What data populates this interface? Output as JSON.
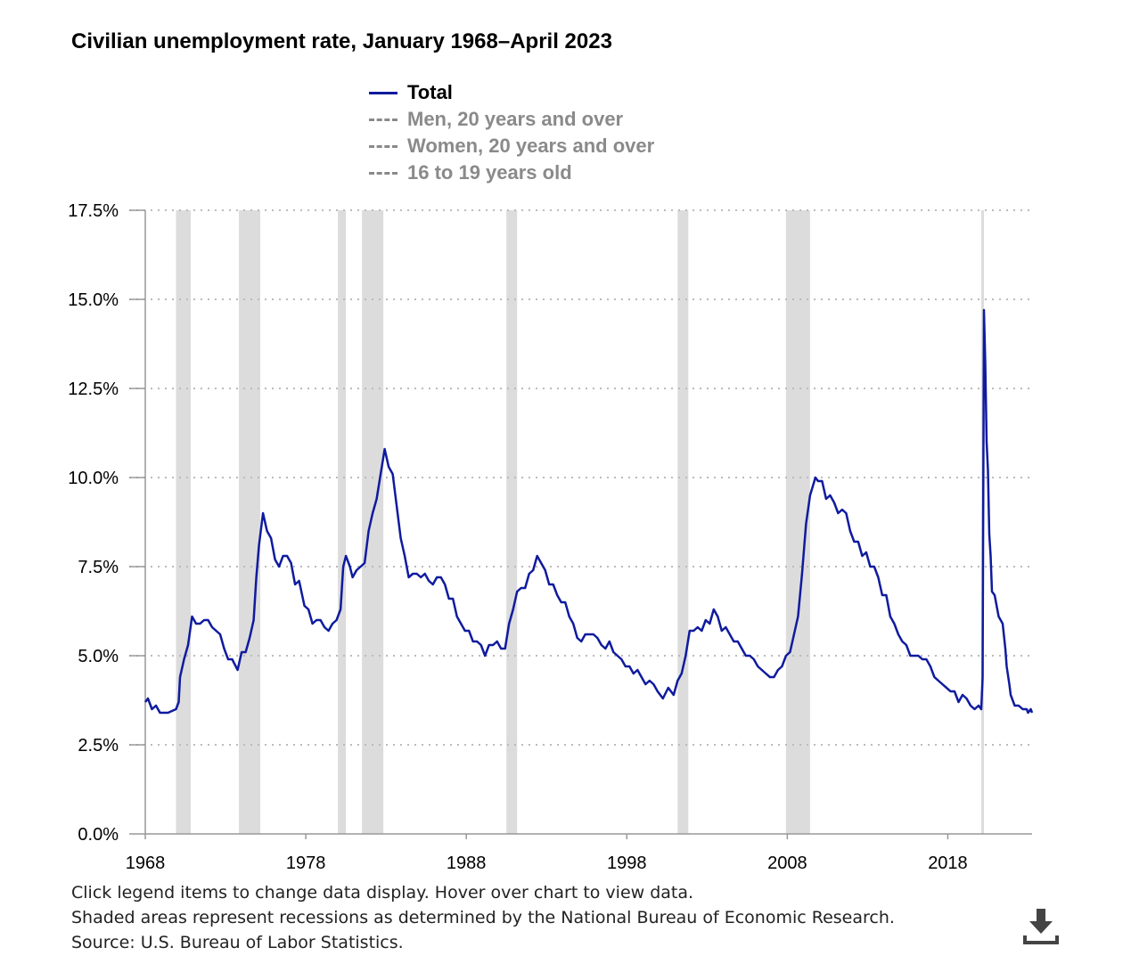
{
  "chart_data": {
    "type": "line",
    "title": "Civilian unemployment rate, January 1968–April 2023",
    "xlabel": "",
    "ylabel": "",
    "ylim": [
      0,
      17.5
    ],
    "xlim": [
      "1968-01",
      "2023-04"
    ],
    "y_ticks": [
      "0.0%",
      "2.5%",
      "5.0%",
      "7.5%",
      "10.0%",
      "12.5%",
      "15.0%",
      "17.5%"
    ],
    "y_tick_values": [
      0,
      2.5,
      5,
      7.5,
      10,
      12.5,
      15,
      17.5
    ],
    "x_ticks": [
      "1968",
      "1978",
      "1988",
      "1998",
      "2008",
      "2018"
    ],
    "grid": "horizontal dotted",
    "legend_placement": "top",
    "legend": [
      {
        "label": "Total",
        "active": true
      },
      {
        "label": "Men, 20 years and over",
        "active": false
      },
      {
        "label": "Women, 20 years and over",
        "active": false
      },
      {
        "label": "16 to 19 years old",
        "active": false
      }
    ],
    "colors": {
      "total": "#0f1b9e",
      "inactive": "#8a8a8a",
      "recession": "#dcdcdc",
      "grid": "#bbbbbb"
    },
    "recessions": [
      [
        "1969-12",
        "1970-11"
      ],
      [
        "1973-11",
        "1975-03"
      ],
      [
        "1980-01",
        "1980-07"
      ],
      [
        "1981-07",
        "1982-11"
      ],
      [
        "1990-07",
        "1991-03"
      ],
      [
        "2001-03",
        "2001-11"
      ],
      [
        "2007-12",
        "2009-06"
      ],
      [
        "2020-02",
        "2020-04"
      ]
    ],
    "series": [
      {
        "name": "Total",
        "points": [
          [
            "1968-01",
            3.7
          ],
          [
            "1968-03",
            3.8
          ],
          [
            "1968-06",
            3.5
          ],
          [
            "1968-09",
            3.6
          ],
          [
            "1968-12",
            3.4
          ],
          [
            "1969-06",
            3.4
          ],
          [
            "1969-12",
            3.5
          ],
          [
            "1970-02",
            3.7
          ],
          [
            "1970-03",
            4.4
          ],
          [
            "1970-06",
            4.9
          ],
          [
            "1970-09",
            5.3
          ],
          [
            "1970-12",
            6.1
          ],
          [
            "1971-03",
            5.9
          ],
          [
            "1971-06",
            5.9
          ],
          [
            "1971-09",
            6.0
          ],
          [
            "1971-12",
            6.0
          ],
          [
            "1972-03",
            5.8
          ],
          [
            "1972-06",
            5.7
          ],
          [
            "1972-09",
            5.6
          ],
          [
            "1972-12",
            5.2
          ],
          [
            "1973-03",
            4.9
          ],
          [
            "1973-06",
            4.9
          ],
          [
            "1973-10",
            4.6
          ],
          [
            "1974-01",
            5.1
          ],
          [
            "1974-04",
            5.1
          ],
          [
            "1974-07",
            5.5
          ],
          [
            "1974-10",
            6.0
          ],
          [
            "1974-12",
            7.2
          ],
          [
            "1975-02",
            8.1
          ],
          [
            "1975-05",
            9.0
          ],
          [
            "1975-08",
            8.5
          ],
          [
            "1975-11",
            8.3
          ],
          [
            "1976-02",
            7.7
          ],
          [
            "1976-05",
            7.5
          ],
          [
            "1976-08",
            7.8
          ],
          [
            "1976-11",
            7.8
          ],
          [
            "1977-02",
            7.6
          ],
          [
            "1977-05",
            7.0
          ],
          [
            "1977-08",
            7.1
          ],
          [
            "1977-12",
            6.4
          ],
          [
            "1978-03",
            6.3
          ],
          [
            "1978-06",
            5.9
          ],
          [
            "1978-09",
            6.0
          ],
          [
            "1978-12",
            6.0
          ],
          [
            "1979-03",
            5.8
          ],
          [
            "1979-06",
            5.7
          ],
          [
            "1979-09",
            5.9
          ],
          [
            "1979-12",
            6.0
          ],
          [
            "1980-03",
            6.3
          ],
          [
            "1980-05",
            7.5
          ],
          [
            "1980-07",
            7.8
          ],
          [
            "1980-10",
            7.5
          ],
          [
            "1980-12",
            7.2
          ],
          [
            "1981-03",
            7.4
          ],
          [
            "1981-06",
            7.5
          ],
          [
            "1981-09",
            7.6
          ],
          [
            "1981-12",
            8.5
          ],
          [
            "1982-03",
            9.0
          ],
          [
            "1982-06",
            9.4
          ],
          [
            "1982-09",
            10.1
          ],
          [
            "1982-12",
            10.8
          ],
          [
            "1983-03",
            10.3
          ],
          [
            "1983-06",
            10.1
          ],
          [
            "1983-09",
            9.2
          ],
          [
            "1983-12",
            8.3
          ],
          [
            "1984-03",
            7.8
          ],
          [
            "1984-06",
            7.2
          ],
          [
            "1984-09",
            7.3
          ],
          [
            "1984-12",
            7.3
          ],
          [
            "1985-03",
            7.2
          ],
          [
            "1985-06",
            7.3
          ],
          [
            "1985-09",
            7.1
          ],
          [
            "1985-12",
            7.0
          ],
          [
            "1986-03",
            7.2
          ],
          [
            "1986-06",
            7.2
          ],
          [
            "1986-09",
            7.0
          ],
          [
            "1986-12",
            6.6
          ],
          [
            "1987-03",
            6.6
          ],
          [
            "1987-06",
            6.1
          ],
          [
            "1987-09",
            5.9
          ],
          [
            "1987-12",
            5.7
          ],
          [
            "1988-03",
            5.7
          ],
          [
            "1988-06",
            5.4
          ],
          [
            "1988-09",
            5.4
          ],
          [
            "1988-12",
            5.3
          ],
          [
            "1989-03",
            5.0
          ],
          [
            "1989-06",
            5.3
          ],
          [
            "1989-09",
            5.3
          ],
          [
            "1989-12",
            5.4
          ],
          [
            "1990-03",
            5.2
          ],
          [
            "1990-06",
            5.2
          ],
          [
            "1990-09",
            5.9
          ],
          [
            "1990-12",
            6.3
          ],
          [
            "1991-03",
            6.8
          ],
          [
            "1991-06",
            6.9
          ],
          [
            "1991-09",
            6.9
          ],
          [
            "1991-12",
            7.3
          ],
          [
            "1992-03",
            7.4
          ],
          [
            "1992-06",
            7.8
          ],
          [
            "1992-09",
            7.6
          ],
          [
            "1992-12",
            7.4
          ],
          [
            "1993-03",
            7.0
          ],
          [
            "1993-06",
            7.0
          ],
          [
            "1993-09",
            6.7
          ],
          [
            "1993-12",
            6.5
          ],
          [
            "1994-03",
            6.5
          ],
          [
            "1994-06",
            6.1
          ],
          [
            "1994-09",
            5.9
          ],
          [
            "1994-12",
            5.5
          ],
          [
            "1995-03",
            5.4
          ],
          [
            "1995-06",
            5.6
          ],
          [
            "1995-09",
            5.6
          ],
          [
            "1995-12",
            5.6
          ],
          [
            "1996-03",
            5.5
          ],
          [
            "1996-06",
            5.3
          ],
          [
            "1996-09",
            5.2
          ],
          [
            "1996-12",
            5.4
          ],
          [
            "1997-03",
            5.1
          ],
          [
            "1997-06",
            5.0
          ],
          [
            "1997-09",
            4.9
          ],
          [
            "1997-12",
            4.7
          ],
          [
            "1998-03",
            4.7
          ],
          [
            "1998-06",
            4.5
          ],
          [
            "1998-09",
            4.6
          ],
          [
            "1998-12",
            4.4
          ],
          [
            "1999-03",
            4.2
          ],
          [
            "1999-06",
            4.3
          ],
          [
            "1999-09",
            4.2
          ],
          [
            "1999-12",
            4.0
          ],
          [
            "2000-04",
            3.8
          ],
          [
            "2000-08",
            4.1
          ],
          [
            "2000-12",
            3.9
          ],
          [
            "2001-03",
            4.3
          ],
          [
            "2001-06",
            4.5
          ],
          [
            "2001-09",
            5.0
          ],
          [
            "2001-12",
            5.7
          ],
          [
            "2002-03",
            5.7
          ],
          [
            "2002-06",
            5.8
          ],
          [
            "2002-09",
            5.7
          ],
          [
            "2002-12",
            6.0
          ],
          [
            "2003-03",
            5.9
          ],
          [
            "2003-06",
            6.3
          ],
          [
            "2003-09",
            6.1
          ],
          [
            "2003-12",
            5.7
          ],
          [
            "2004-03",
            5.8
          ],
          [
            "2004-06",
            5.6
          ],
          [
            "2004-09",
            5.4
          ],
          [
            "2004-12",
            5.4
          ],
          [
            "2005-03",
            5.2
          ],
          [
            "2005-06",
            5.0
          ],
          [
            "2005-09",
            5.0
          ],
          [
            "2005-12",
            4.9
          ],
          [
            "2006-03",
            4.7
          ],
          [
            "2006-06",
            4.6
          ],
          [
            "2006-09",
            4.5
          ],
          [
            "2006-12",
            4.4
          ],
          [
            "2007-03",
            4.4
          ],
          [
            "2007-06",
            4.6
          ],
          [
            "2007-09",
            4.7
          ],
          [
            "2007-12",
            5.0
          ],
          [
            "2008-03",
            5.1
          ],
          [
            "2008-06",
            5.6
          ],
          [
            "2008-09",
            6.1
          ],
          [
            "2008-12",
            7.3
          ],
          [
            "2009-03",
            8.7
          ],
          [
            "2009-06",
            9.5
          ],
          [
            "2009-10",
            10.0
          ],
          [
            "2009-12",
            9.9
          ],
          [
            "2010-03",
            9.9
          ],
          [
            "2010-06",
            9.4
          ],
          [
            "2010-09",
            9.5
          ],
          [
            "2010-12",
            9.3
          ],
          [
            "2011-03",
            9.0
          ],
          [
            "2011-06",
            9.1
          ],
          [
            "2011-09",
            9.0
          ],
          [
            "2011-12",
            8.5
          ],
          [
            "2012-03",
            8.2
          ],
          [
            "2012-06",
            8.2
          ],
          [
            "2012-09",
            7.8
          ],
          [
            "2012-12",
            7.9
          ],
          [
            "2013-03",
            7.5
          ],
          [
            "2013-06",
            7.5
          ],
          [
            "2013-09",
            7.2
          ],
          [
            "2013-12",
            6.7
          ],
          [
            "2014-03",
            6.7
          ],
          [
            "2014-06",
            6.1
          ],
          [
            "2014-09",
            5.9
          ],
          [
            "2014-12",
            5.6
          ],
          [
            "2015-03",
            5.4
          ],
          [
            "2015-06",
            5.3
          ],
          [
            "2015-09",
            5.0
          ],
          [
            "2015-12",
            5.0
          ],
          [
            "2016-03",
            5.0
          ],
          [
            "2016-06",
            4.9
          ],
          [
            "2016-09",
            4.9
          ],
          [
            "2016-12",
            4.7
          ],
          [
            "2017-03",
            4.4
          ],
          [
            "2017-06",
            4.3
          ],
          [
            "2017-09",
            4.2
          ],
          [
            "2017-12",
            4.1
          ],
          [
            "2018-03",
            4.0
          ],
          [
            "2018-06",
            4.0
          ],
          [
            "2018-09",
            3.7
          ],
          [
            "2018-12",
            3.9
          ],
          [
            "2019-03",
            3.8
          ],
          [
            "2019-06",
            3.6
          ],
          [
            "2019-09",
            3.5
          ],
          [
            "2019-12",
            3.6
          ],
          [
            "2020-02",
            3.5
          ],
          [
            "2020-03",
            4.4
          ],
          [
            "2020-04",
            14.7
          ],
          [
            "2020-05",
            13.2
          ],
          [
            "2020-06",
            11.0
          ],
          [
            "2020-07",
            10.2
          ],
          [
            "2020-08",
            8.4
          ],
          [
            "2020-09",
            7.8
          ],
          [
            "2020-10",
            6.8
          ],
          [
            "2020-12",
            6.7
          ],
          [
            "2021-03",
            6.1
          ],
          [
            "2021-06",
            5.9
          ],
          [
            "2021-08",
            5.2
          ],
          [
            "2021-09",
            4.7
          ],
          [
            "2021-11",
            4.2
          ],
          [
            "2021-12",
            3.9
          ],
          [
            "2022-03",
            3.6
          ],
          [
            "2022-06",
            3.6
          ],
          [
            "2022-09",
            3.5
          ],
          [
            "2022-12",
            3.5
          ],
          [
            "2023-01",
            3.4
          ],
          [
            "2023-03",
            3.5
          ],
          [
            "2023-04",
            3.4
          ]
        ]
      }
    ]
  },
  "notes": [
    "Click legend items to change data display. Hover over chart to view data.",
    "Shaded areas represent recessions as determined by the National Bureau of Economic Research.",
    "Source: U.S. Bureau of Labor Statistics."
  ],
  "download_icon": "download-icon"
}
